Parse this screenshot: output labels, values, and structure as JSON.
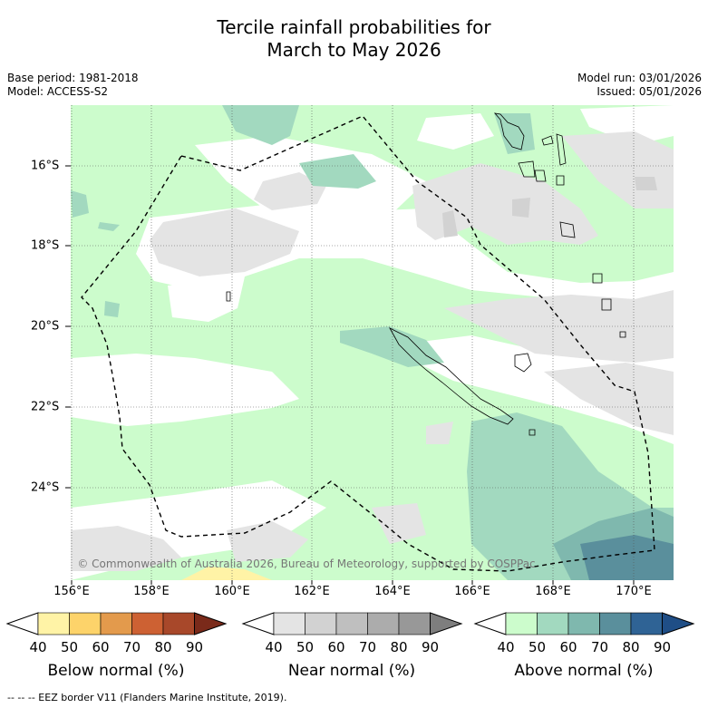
{
  "title_line1": "Tercile rainfall probabilities for",
  "title_line2": "March to May 2026",
  "meta": {
    "base_period": "Base period: 1981-2018",
    "model": "Model: ACCESS-S2",
    "model_run": "Model run: 03/01/2026",
    "issued": "Issued: 05/01/2026"
  },
  "lat_labels": [
    "16°S",
    "18°S",
    "20°S",
    "22°S",
    "24°S"
  ],
  "lon_labels": [
    "156°E",
    "158°E",
    "160°E",
    "162°E",
    "164°E",
    "166°E",
    "168°E",
    "170°E"
  ],
  "copyright": "© Commonwealth of Australia 2026, Bureau of Meteorology, supported by COSPPac",
  "colorbars": [
    {
      "title": "Below normal (%)",
      "ticks": [
        "40",
        "50",
        "60",
        "70",
        "80",
        "90"
      ],
      "colors": [
        "#fff3a6",
        "#fdd36a",
        "#e39a4c",
        "#cd6133",
        "#a8482a",
        "#7a2a1a"
      ]
    },
    {
      "title": "Near normal (%)",
      "ticks": [
        "40",
        "50",
        "60",
        "70",
        "80",
        "90"
      ],
      "colors": [
        "#e4e4e4",
        "#d2d2d2",
        "#bfbfbf",
        "#acacac",
        "#989898",
        "#7e7e7e"
      ]
    },
    {
      "title": "Above normal (%)",
      "ticks": [
        "40",
        "50",
        "60",
        "70",
        "80",
        "90"
      ],
      "colors": [
        "#ccfccc",
        "#a2d9bf",
        "#7fb8ae",
        "#5a8f9c",
        "#2f6395",
        "#1f4e86"
      ]
    }
  ],
  "footer": "--  --  -- EEZ border V11 (Flanders Marine Institute, 2019).",
  "colors": {
    "above_40": "#ccfccc",
    "above_50": "#a2d9bf",
    "above_60": "#7fb8ae",
    "near_40": "#e4e4e4",
    "near_50": "#d2d2d2",
    "below_40": "#fff3a6"
  }
}
